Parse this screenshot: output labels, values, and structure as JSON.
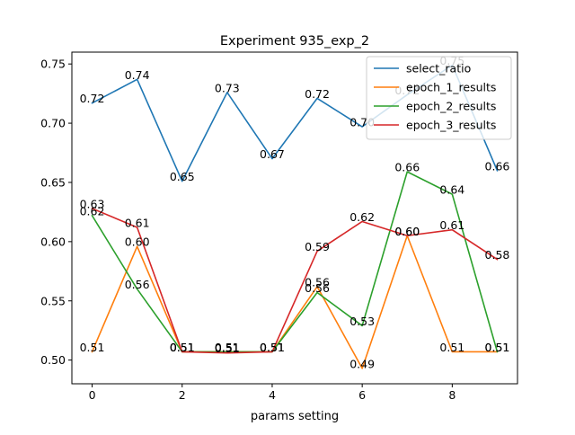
{
  "chart_data": {
    "type": "line",
    "title": "Experiment 935_exp_2",
    "xlabel": "params setting",
    "ylabel": "",
    "xlim": [
      -0.45,
      9.45
    ],
    "ylim": [
      0.48,
      0.76
    ],
    "xticks": [
      0,
      2,
      4,
      6,
      8
    ],
    "xtick_labels": [
      "0",
      "2",
      "4",
      "6",
      "8"
    ],
    "yticks": [
      0.5,
      0.55,
      0.6,
      0.65,
      0.7,
      0.75
    ],
    "ytick_labels": [
      "0.50",
      "0.55",
      "0.60",
      "0.65",
      "0.70",
      "0.75"
    ],
    "grid": false,
    "legend_position": "top-right",
    "x": [
      0,
      1,
      2,
      3,
      4,
      5,
      6,
      7,
      8,
      9
    ],
    "series": [
      {
        "name": "select_ratio",
        "color": "#1f77b4",
        "values": [
          0.717,
          0.737,
          0.651,
          0.726,
          0.67,
          0.721,
          0.697,
          0.724,
          0.749,
          0.66
        ],
        "labels": [
          "0.72",
          "0.74",
          "0.65",
          "0.73",
          "0.67",
          "0.72",
          "0.70",
          "0.72",
          "0.75",
          "0.66"
        ]
      },
      {
        "name": "epoch_1_results",
        "color": "#ff7f0e",
        "values": [
          0.507,
          0.596,
          0.507,
          0.507,
          0.507,
          0.562,
          0.493,
          0.605,
          0.507,
          0.507
        ],
        "labels": [
          "0.51",
          "0.60",
          "0.51",
          "0.51",
          "0.51",
          "0.56",
          "0.49",
          "0.60",
          "0.51",
          "0.51"
        ]
      },
      {
        "name": "epoch_2_results",
        "color": "#2ca02c",
        "values": [
          0.622,
          0.56,
          0.507,
          0.507,
          0.507,
          0.557,
          0.529,
          0.659,
          0.64,
          0.507
        ],
        "labels": [
          "0.62",
          "0.56",
          "0.51",
          "0.51",
          "0.51",
          "0.56",
          "0.53",
          "0.66",
          "0.64",
          "0.51"
        ]
      },
      {
        "name": "epoch_3_results",
        "color": "#d62728",
        "values": [
          0.628,
          0.612,
          0.507,
          0.506,
          0.507,
          0.592,
          0.617,
          0.605,
          0.61,
          0.585
        ],
        "labels": [
          "0.63",
          "0.61",
          "0.51",
          "0.51",
          "0.51",
          "0.59",
          "0.62",
          "0.60",
          "0.61",
          "0.58"
        ]
      }
    ]
  }
}
